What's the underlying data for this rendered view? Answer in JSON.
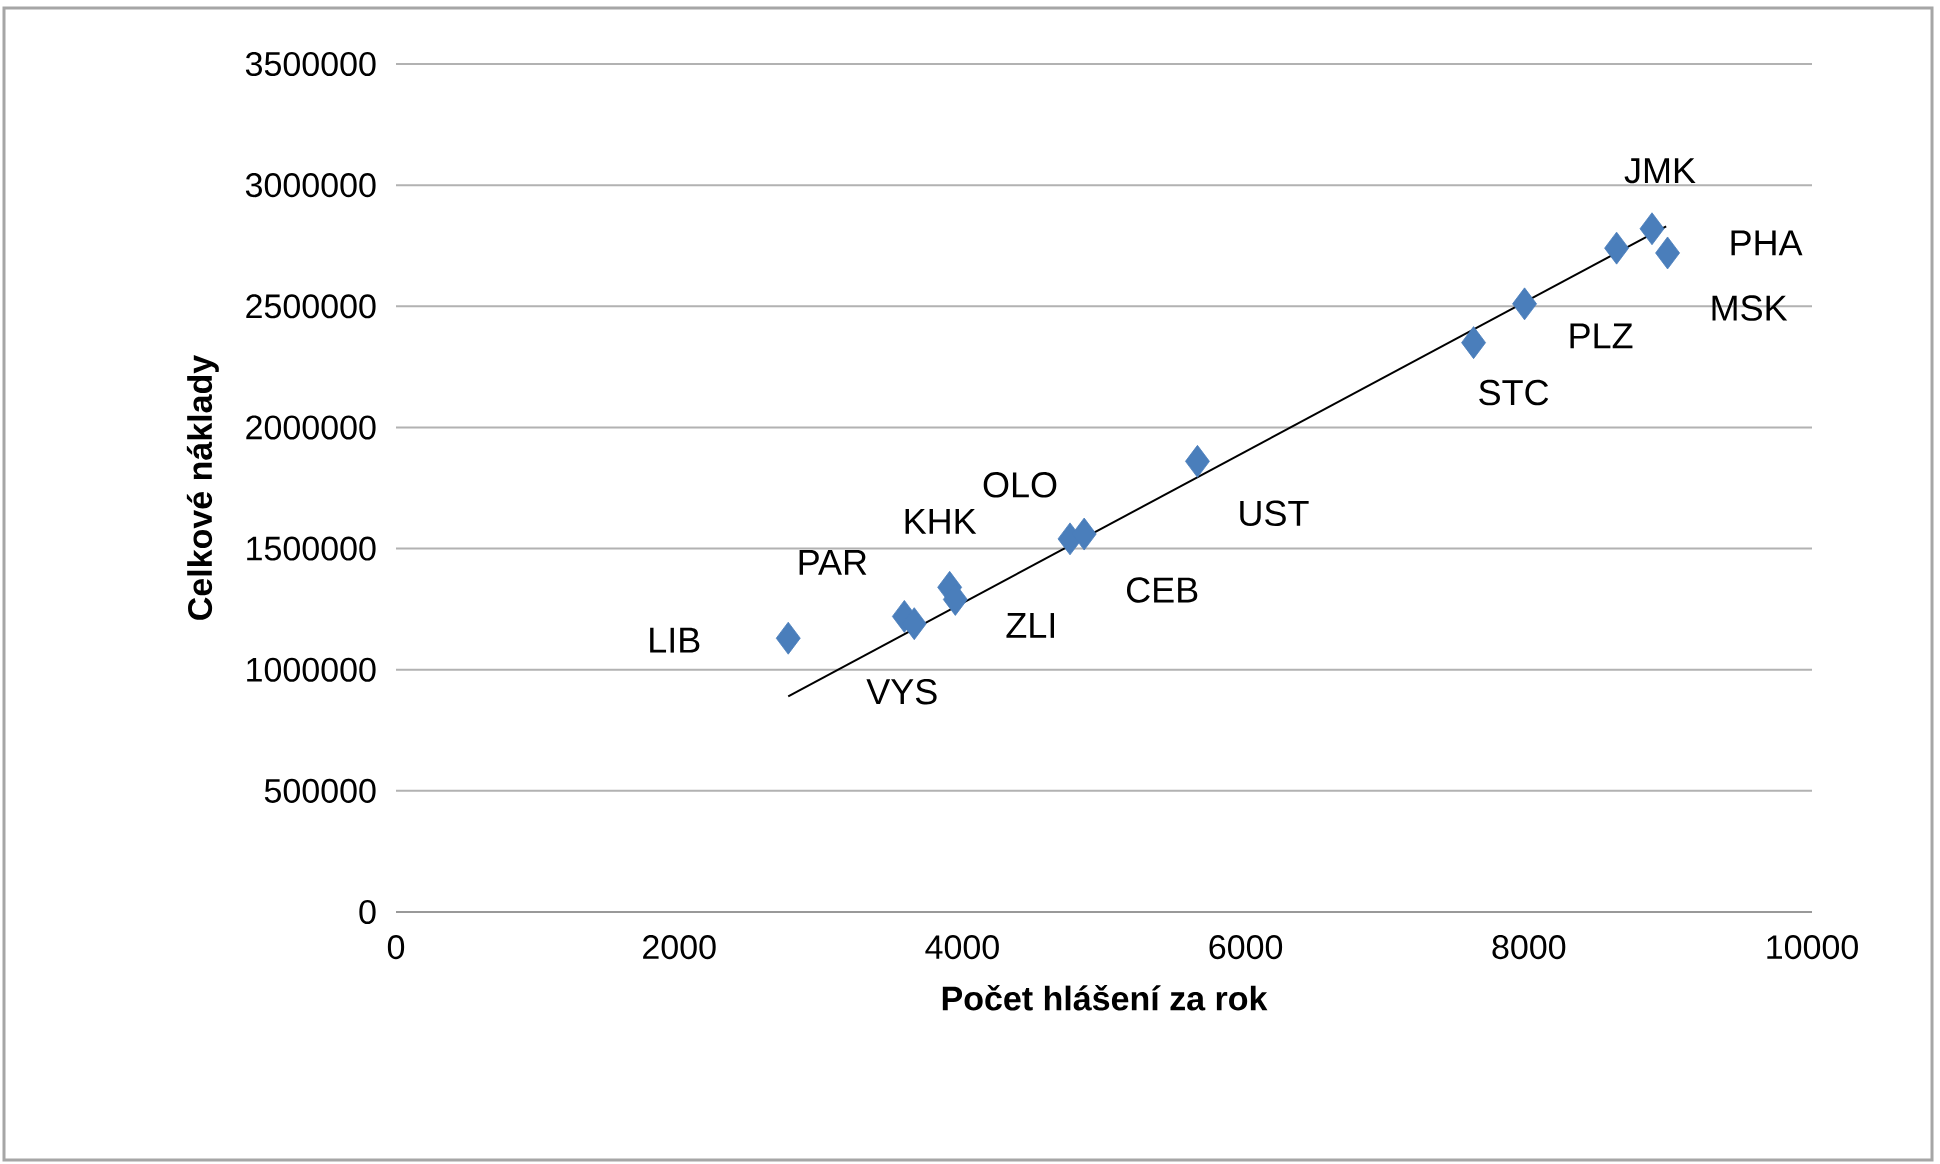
{
  "chart_data": {
    "type": "scatter",
    "xlabel": "Počet hlášení za rok",
    "ylabel": "Celkové náklady",
    "xlim": [
      0,
      10000
    ],
    "ylim": [
      0,
      3500000
    ],
    "xticks": [
      0,
      2000,
      4000,
      6000,
      8000,
      10000
    ],
    "yticks": [
      0,
      500000,
      1000000,
      1500000,
      2000000,
      2500000,
      3000000,
      3500000
    ],
    "grid": "y",
    "marker": "diamond",
    "series": [
      {
        "color": "#4a7ebb",
        "x": [
          2770,
          3590,
          3660,
          3910,
          3950,
          4760,
          4860,
          5660,
          7610,
          7970,
          8620,
          8870,
          8980
        ],
        "values": [
          1130000,
          1220000,
          1190000,
          1340000,
          1290000,
          1540000,
          1560000,
          1860000,
          2350000,
          2510000,
          2740000,
          2820000,
          2720000
        ]
      },
      {
        "type": "line",
        "color": "#000000",
        "marker": "none",
        "x": [
          2770,
          8970
        ],
        "values": [
          890000,
          2830000
        ]
      }
    ],
    "annotations": [
      {
        "text": "LIB",
        "x": 2770,
        "y": 1130000
      },
      {
        "text": "PAR",
        "x": 3590,
        "y": 1220000
      },
      {
        "text": "KHK",
        "x": 3910,
        "y": 1340000
      },
      {
        "text": "OLO",
        "x": 4760,
        "y": 1540000
      },
      {
        "text": "VYS",
        "x": 3660,
        "y": 1190000
      },
      {
        "text": "ZLI",
        "x": 3950,
        "y": 1290000
      },
      {
        "text": "CEB",
        "x": 4860,
        "y": 1560000
      },
      {
        "text": "UST",
        "x": 5660,
        "y": 1860000
      },
      {
        "text": "STC",
        "x": 7610,
        "y": 2350000
      },
      {
        "text": "PLZ",
        "x": 7970,
        "y": 2510000
      },
      {
        "text": "JMK",
        "x": 8870,
        "y": 2820000
      },
      {
        "text": "PHA",
        "x": 8980,
        "y": 2720000
      },
      {
        "text": "MSK",
        "x": 8620,
        "y": 2740000
      }
    ]
  }
}
